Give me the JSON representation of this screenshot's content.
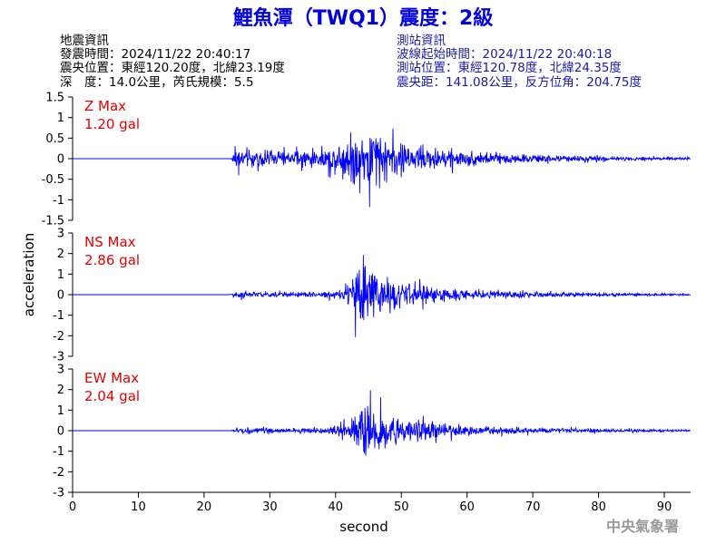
{
  "title": "鯉魚潭（TWQ1）震度：2級",
  "quake_info": {
    "heading": "地震資訊",
    "origin_time": "發震時間：2024/11/22 20:40:17",
    "epicenter": "震央位置：東經120.20度，北緯23.19度",
    "depth_magnitude": "深　度：14.0公里，芮氏規模：5.5"
  },
  "station_info": {
    "heading": "測站資訊",
    "wave_start": "波線起始時間：2024/11/22 20:40:18",
    "location": "測站位置：東經120.78度，北緯24.35度",
    "distance": "震央距：141.08公里，反方位角：204.75度"
  },
  "watermark": "中央氣象署",
  "colors": {
    "title": "#0000dd",
    "trace": "#0000ff",
    "max_label": "#e00000",
    "station_info": "#1a1aa6"
  },
  "chart_data": {
    "type": "line",
    "xlabel": "second",
    "ylabel": "acceleration",
    "xlim": [
      0,
      94
    ],
    "x_ticks": [
      0,
      10,
      20,
      30,
      40,
      50,
      60,
      70,
      80,
      90
    ],
    "series": [
      {
        "component": "Z",
        "max_label": "Z Max",
        "max_value": "1.20 gal",
        "ylim": [
          -1.5,
          1.5
        ],
        "y_ticks": [
          -1.5,
          -1,
          -0.5,
          0,
          0.5,
          1,
          1.5
        ],
        "y_tick_labels": [
          "-1.5",
          "-1",
          "-0.5",
          "0",
          "0.5",
          "1",
          "1.5"
        ],
        "x": [
          0,
          24,
          25,
          27,
          30,
          35,
          38,
          40,
          42,
          43,
          44,
          45,
          46,
          47,
          48,
          50,
          52,
          55,
          58,
          60,
          65,
          70,
          80,
          90,
          94
        ],
        "amplitude": [
          0,
          0.02,
          0.42,
          0.33,
          0.28,
          0.3,
          0.35,
          0.55,
          0.9,
          1.05,
          1.1,
          1.2,
          1.08,
          0.95,
          0.8,
          0.62,
          0.5,
          0.42,
          0.35,
          0.3,
          0.22,
          0.14,
          0.09,
          0.06,
          0.05
        ]
      },
      {
        "component": "NS",
        "max_label": "NS Max",
        "max_value": "2.86 gal",
        "ylim": [
          -3,
          3
        ],
        "y_ticks": [
          -3,
          -2,
          -1,
          0,
          1,
          2,
          3
        ],
        "y_tick_labels": [
          "-3",
          "-2",
          "-1",
          "0",
          "1",
          "2",
          "3"
        ],
        "x": [
          0,
          24,
          25,
          27,
          30,
          35,
          38,
          41,
          42.5,
          43.5,
          44,
          45,
          47,
          50,
          53,
          55,
          58,
          60,
          65,
          70,
          80,
          90,
          94
        ],
        "amplitude": [
          0,
          0.02,
          0.28,
          0.22,
          0.2,
          0.18,
          0.22,
          0.45,
          1.2,
          2.86,
          2.5,
          2.2,
          1.6,
          0.95,
          0.75,
          0.6,
          0.45,
          0.38,
          0.28,
          0.2,
          0.12,
          0.08,
          0.07
        ]
      },
      {
        "component": "EW",
        "max_label": "EW Max",
        "max_value": "2.04 gal",
        "ylim": [
          -3,
          3
        ],
        "y_ticks": [
          -3,
          -2,
          -1,
          0,
          1,
          2,
          3
        ],
        "y_tick_labels": [
          "-3",
          "-2",
          "-1",
          "0",
          "1",
          "2",
          "3"
        ],
        "x": [
          0,
          24,
          25,
          27,
          30,
          35,
          38,
          41,
          42,
          43,
          44,
          45,
          46,
          47,
          48,
          50,
          52,
          55,
          58,
          60,
          65,
          70,
          80,
          90,
          94
        ],
        "amplitude": [
          0,
          0.02,
          0.25,
          0.2,
          0.18,
          0.17,
          0.22,
          0.45,
          0.9,
          1.45,
          1.7,
          2.04,
          1.8,
          1.6,
          1.3,
          0.95,
          0.8,
          0.62,
          0.48,
          0.4,
          0.3,
          0.22,
          0.14,
          0.1,
          0.09
        ]
      }
    ]
  }
}
